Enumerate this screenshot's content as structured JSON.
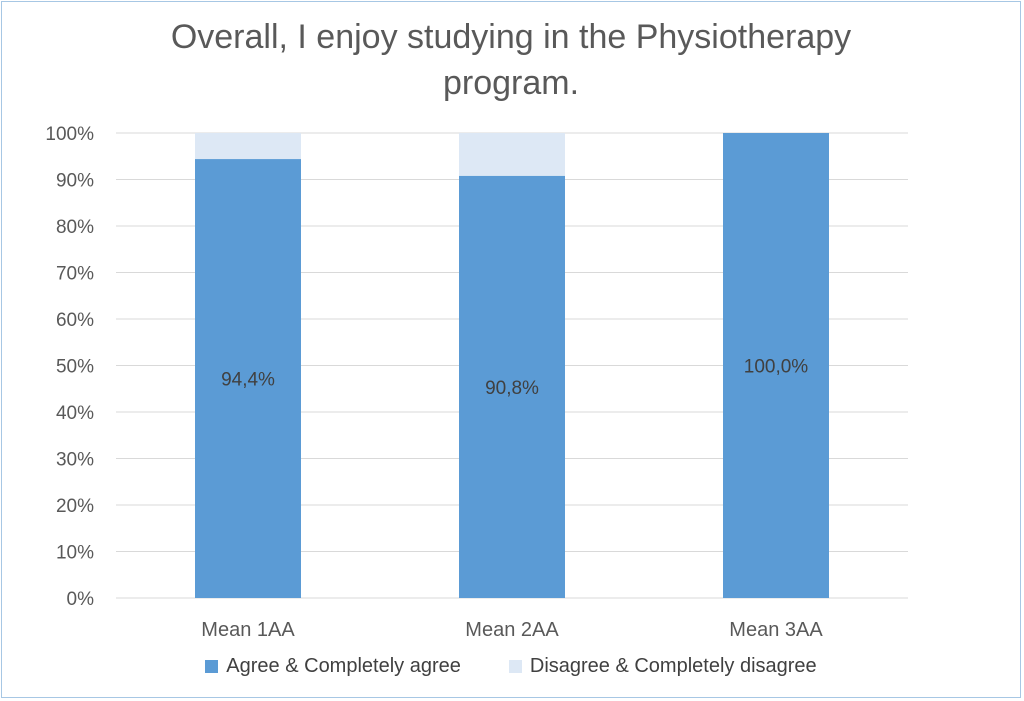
{
  "chart_data": {
    "type": "bar",
    "stacked": true,
    "percent_stacked": true,
    "title_lines": [
      "Overall, I enjoy studying in the Physiotherapy",
      "program."
    ],
    "categories": [
      "Mean 1AA",
      "Mean 2AA",
      "Mean 3AA"
    ],
    "series": [
      {
        "name": "Agree & Completely agree",
        "values": [
          94.4,
          90.8,
          100.0
        ],
        "color": "#5b9bd5",
        "labels": [
          "94,4%",
          "90,8%",
          "100,0%"
        ]
      },
      {
        "name": "Disagree & Completely disagree",
        "values": [
          5.6,
          9.2,
          0.0
        ],
        "color": "#dde8f5"
      }
    ],
    "y_ticks": [
      "0%",
      "10%",
      "20%",
      "30%",
      "40%",
      "50%",
      "60%",
      "70%",
      "80%",
      "90%",
      "100%"
    ],
    "ylim": [
      0,
      100
    ],
    "grid": true,
    "legend_position": "bottom",
    "colors": {
      "gridline": "#d9d9d9",
      "axis_text": "#595959",
      "label_text": "#404040",
      "border": "#a7c7e4"
    }
  }
}
